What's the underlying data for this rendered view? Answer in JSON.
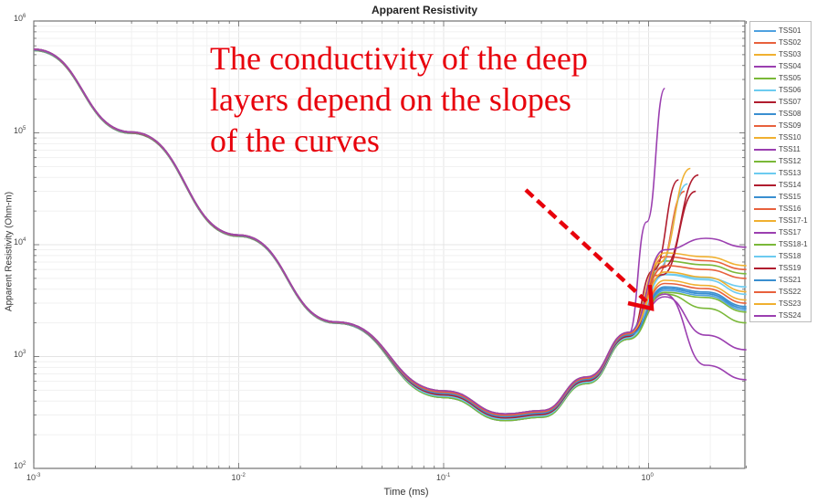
{
  "chart_data": {
    "type": "line",
    "title": "Apparent Resistivity",
    "xlabel": "Time (ms)",
    "ylabel": "Apparent Resistivity (Ohm-m)",
    "xscale": "log",
    "yscale": "log",
    "xlim": [
      0.001,
      3
    ],
    "ylim": [
      100,
      1000000
    ],
    "grid": true,
    "legend_position": "outside-right",
    "x_ticks": [
      "10^-3",
      "10^-2",
      "10^-1",
      "10^0"
    ],
    "y_ticks": [
      "10^2",
      "10^3",
      "10^4",
      "10^5",
      "10^6"
    ],
    "common_trend": {
      "x": [
        0.001,
        0.003,
        0.01,
        0.03,
        0.1,
        0.2,
        0.3,
        0.5,
        0.8
      ],
      "y": [
        550000,
        100000,
        12000,
        2000,
        450,
        280,
        300,
        600,
        1500
      ]
    },
    "series": [
      {
        "name": "TSS01",
        "color": "#4fa1e0",
        "end_x": 3.0,
        "end_y": 2600
      },
      {
        "name": "TSS02",
        "color": "#e8613c",
        "end_x": 1.5,
        "end_y": 30000
      },
      {
        "name": "TSS03",
        "color": "#f0b030",
        "end_x": 3.0,
        "end_y": 3200
      },
      {
        "name": "TSS04",
        "color": "#9b3fb0",
        "end_x": 3.0,
        "end_y": 1150
      },
      {
        "name": "TSS05",
        "color": "#7ab838",
        "end_x": 3.0,
        "end_y": 5500
      },
      {
        "name": "TSS06",
        "color": "#6ccbf0",
        "end_x": 1.55,
        "end_y": 35000
      },
      {
        "name": "TSS07",
        "color": "#b01c2e",
        "end_x": 1.4,
        "end_y": 38000
      },
      {
        "name": "TSS08",
        "color": "#3a8fd0",
        "end_x": 3.0,
        "end_y": 2700
      },
      {
        "name": "TSS09",
        "color": "#e8613c",
        "end_x": 3.0,
        "end_y": 6000
      },
      {
        "name": "TSS10",
        "color": "#f0b030",
        "end_x": 1.6,
        "end_y": 48000
      },
      {
        "name": "TSS11",
        "color": "#9b3fb0",
        "end_x": 1.2,
        "end_y": 250000
      },
      {
        "name": "TSS12",
        "color": "#7ab838",
        "end_x": 3.0,
        "end_y": 2000
      },
      {
        "name": "TSS13",
        "color": "#6ccbf0",
        "end_x": 3.0,
        "end_y": 3600
      },
      {
        "name": "TSS14",
        "color": "#b01c2e",
        "end_x": 1.75,
        "end_y": 42000
      },
      {
        "name": "TSS15",
        "color": "#3a8fd0",
        "end_x": 3.0,
        "end_y": 2800
      },
      {
        "name": "TSS16",
        "color": "#e8613c",
        "end_x": 3.0,
        "end_y": 3000
      },
      {
        "name": "TSS17-1",
        "color": "#f0b030",
        "end_x": 3.0,
        "end_y": 6500
      },
      {
        "name": "TSS17",
        "color": "#9b3fb0",
        "end_x": 3.0,
        "end_y": 620
      },
      {
        "name": "TSS18-1",
        "color": "#7ab838",
        "end_x": 3.0,
        "end_y": 2500
      },
      {
        "name": "TSS18",
        "color": "#6ccbf0",
        "end_x": 3.0,
        "end_y": 4200
      },
      {
        "name": "TSS19",
        "color": "#b01c2e",
        "end_x": 1.7,
        "end_y": 30000
      },
      {
        "name": "TSS21",
        "color": "#3a8fd0",
        "end_x": 3.0,
        "end_y": 2700
      },
      {
        "name": "TSS22",
        "color": "#e8613c",
        "end_x": 3.0,
        "end_y": 5000
      },
      {
        "name": "TSS23",
        "color": "#f0b030",
        "end_x": 3.0,
        "end_y": 3800
      },
      {
        "name": "TSS24",
        "color": "#9b3fb0",
        "end_x": 3.0,
        "end_y": 9500
      }
    ],
    "annotations": [
      {
        "text": "The conductivity of the deep layers depend on the slopes of the curves",
        "color": "#e8000b"
      },
      {
        "type": "dashed-arrow",
        "color": "#e8000b",
        "from": [
          0.55,
          40000
        ],
        "to": [
          1.1,
          2300
        ]
      }
    ]
  },
  "labels": {
    "title": "Apparent Resistivity",
    "xlabel": "Time (ms)",
    "ylabel": "Apparent Resistivity (Ohm-m)",
    "annotation_line1": "The conductivity of the deep",
    "annotation_line2": "layers depend on the slopes",
    "annotation_line3": "of the curves"
  },
  "legend": {
    "items": [
      "TSS01",
      "TSS02",
      "TSS03",
      "TSS04",
      "TSS05",
      "TSS06",
      "TSS07",
      "TSS08",
      "TSS09",
      "TSS10",
      "TSS11",
      "TSS12",
      "TSS13",
      "TSS14",
      "TSS15",
      "TSS16",
      "TSS17-1",
      "TSS17",
      "TSS18-1",
      "TSS18",
      "TSS19",
      "TSS21",
      "TSS22",
      "TSS23",
      "TSS24"
    ]
  }
}
